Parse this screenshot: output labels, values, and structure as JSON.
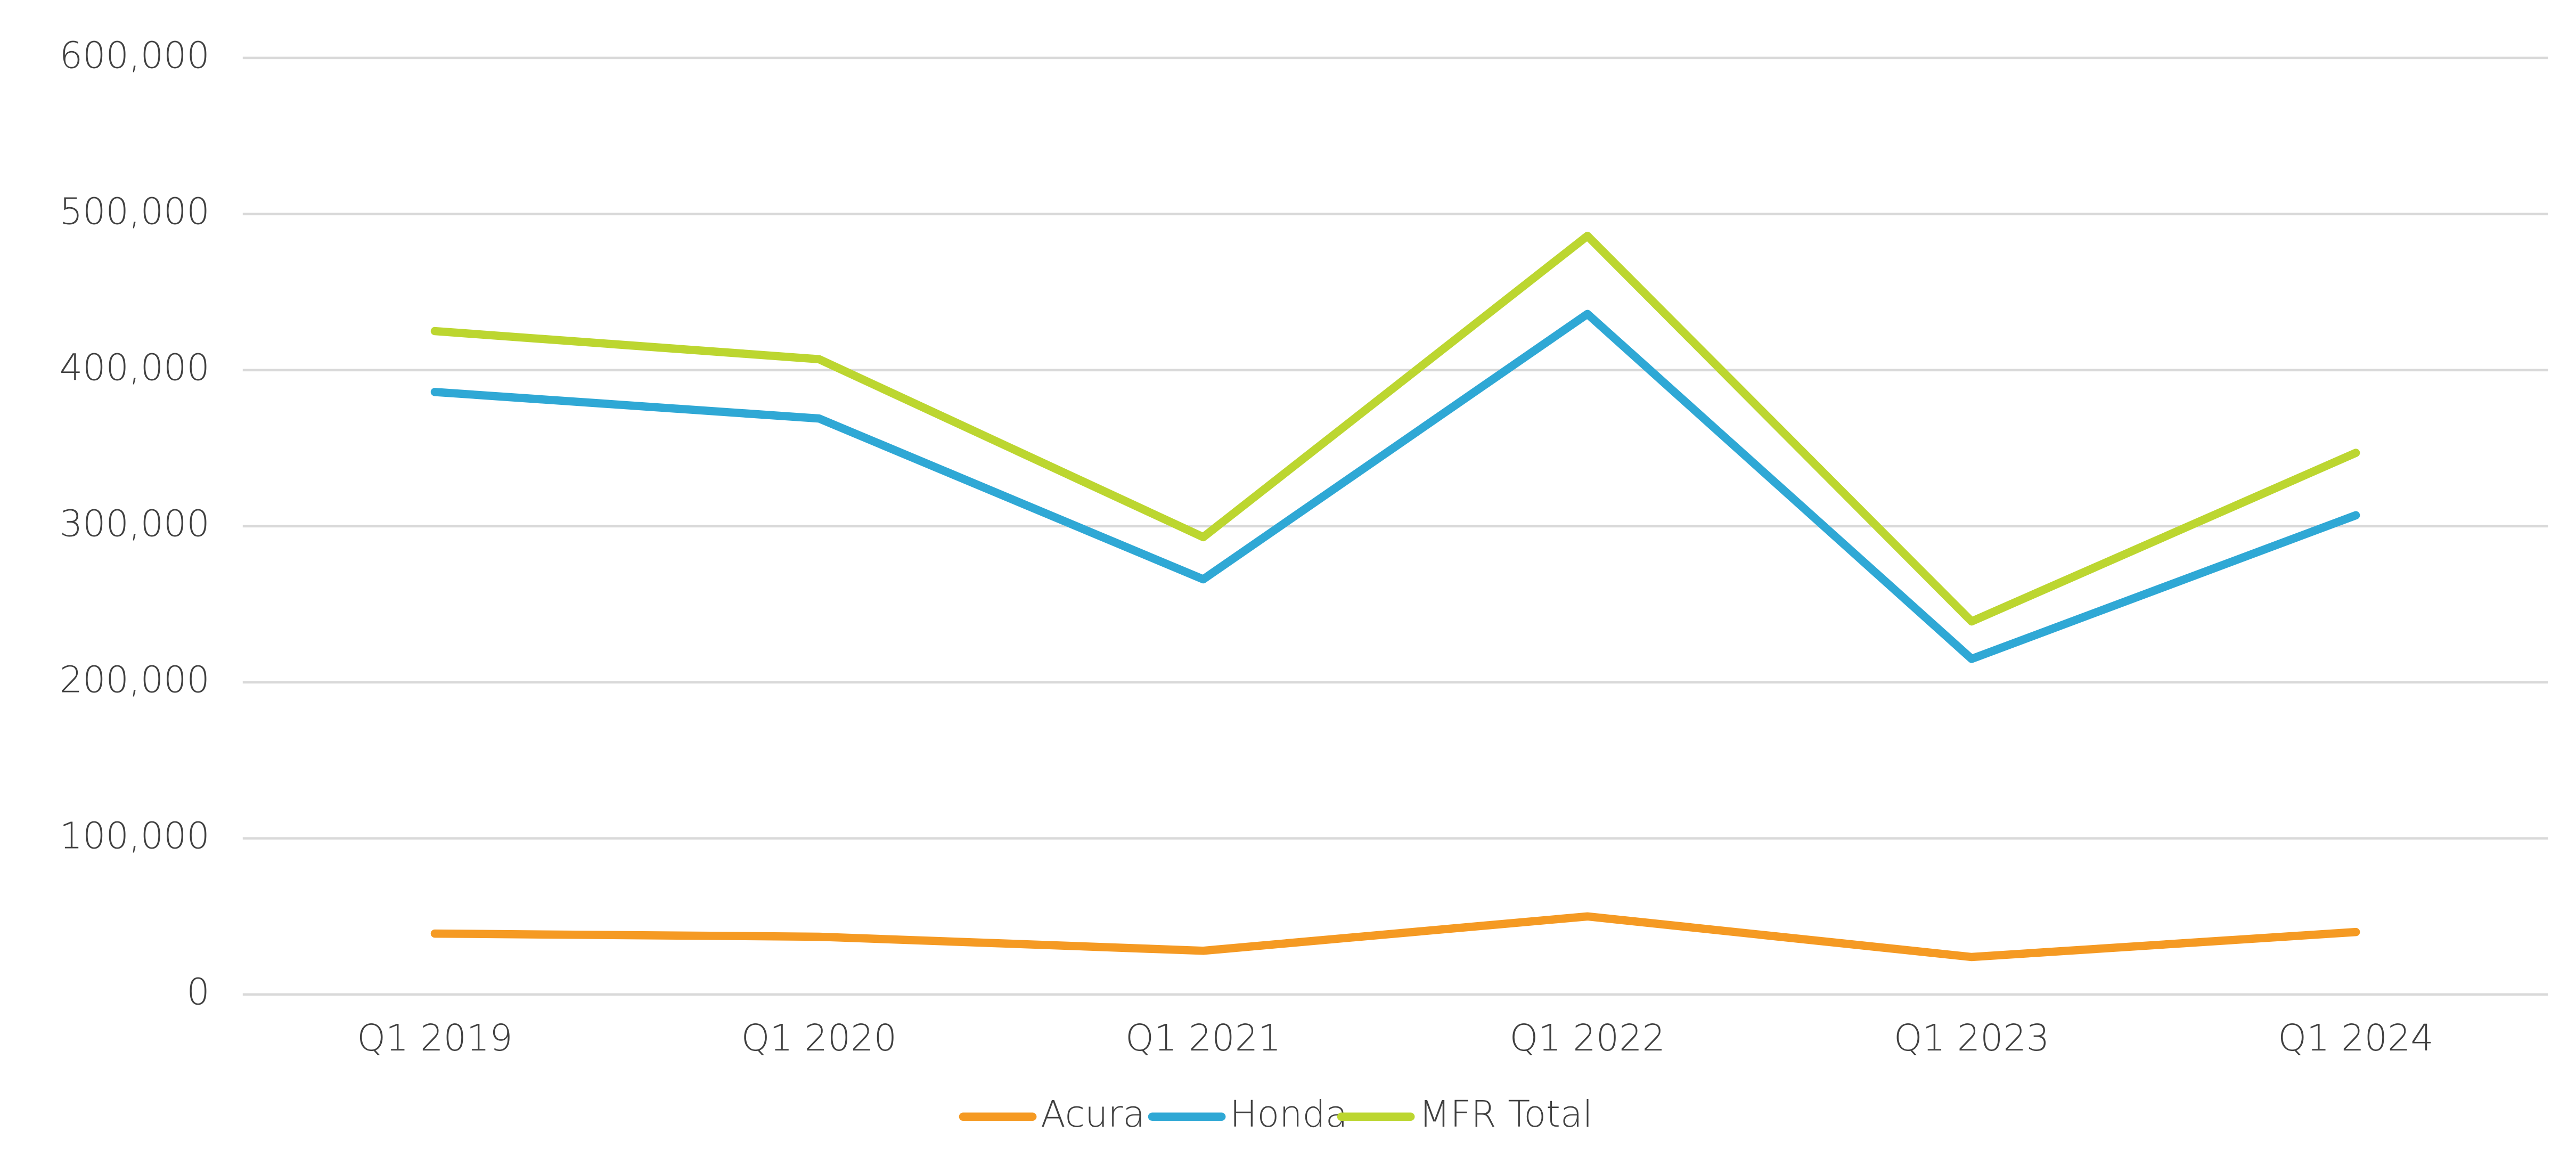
{
  "chart_data": {
    "type": "line",
    "categories": [
      "Q1 2019",
      "Q1 2020",
      "Q1 2021",
      "Q1 2022",
      "Q1 2023",
      "Q1 2024"
    ],
    "series": [
      {
        "name": "Acura",
        "color": "#f59a23",
        "values": [
          39000,
          37000,
          28000,
          50000,
          24000,
          40000
        ]
      },
      {
        "name": "Honda",
        "color": "#2fa8d5",
        "values": [
          386000,
          369000,
          266000,
          436000,
          215000,
          307000
        ]
      },
      {
        "name": "MFR Total",
        "color": "#bcd630",
        "values": [
          425000,
          407000,
          293000,
          486000,
          239000,
          347000
        ]
      }
    ],
    "ylim": [
      0,
      600000
    ],
    "yticks": [
      0,
      {
        "value": 100000,
        "label": "100,000"
      },
      {
        "value": 200000,
        "label": "200,000"
      },
      {
        "value": 300000,
        "label": "300,000"
      },
      {
        "value": 400000,
        "label": "400,000"
      },
      {
        "value": 500000,
        "label": "500,000"
      },
      {
        "value": 600000,
        "label": "600,000"
      }
    ],
    "grid": true,
    "legend": "bottom"
  }
}
